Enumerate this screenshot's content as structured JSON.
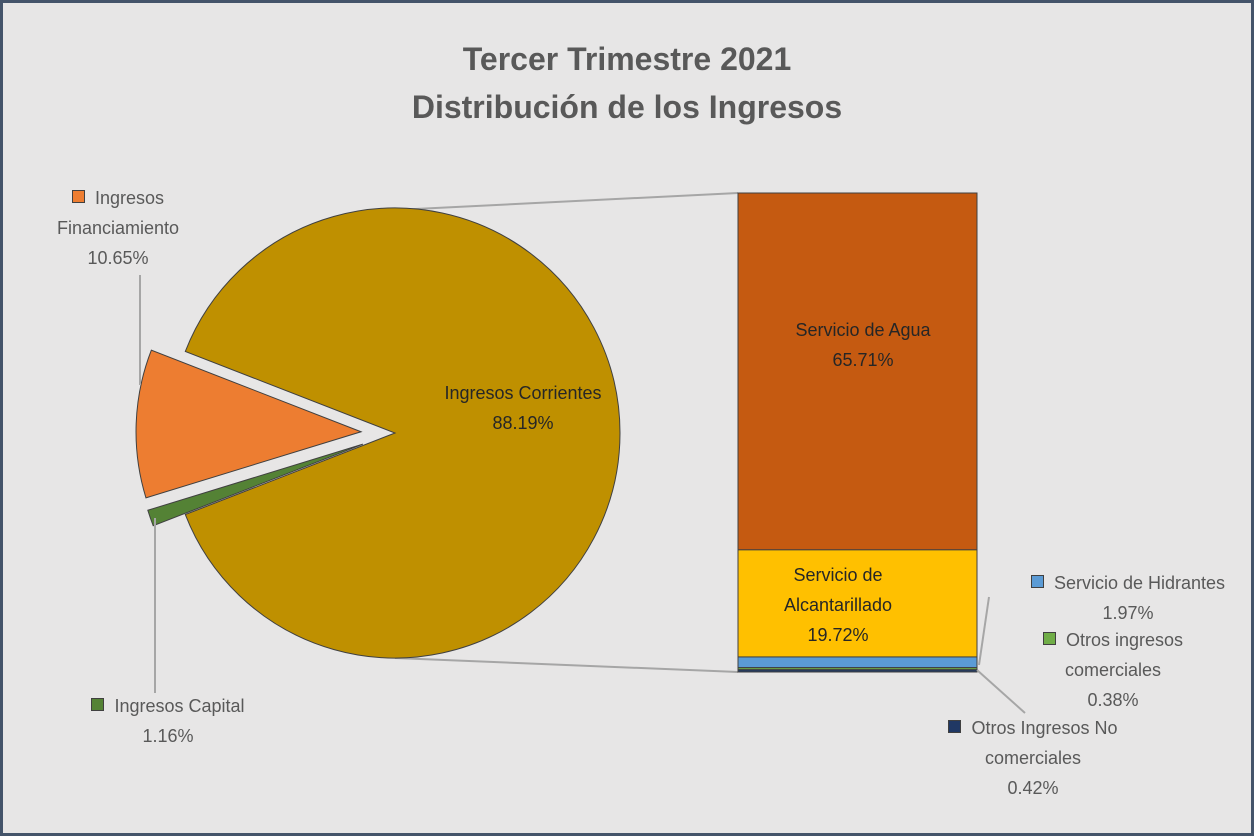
{
  "chart_data": {
    "type": "bar-of-pie",
    "title": "Tercer Trimestre 2021",
    "subtitle": "Distribución de los Ingresos",
    "categories": [
      "Ingresos Corrientes",
      "Ingresos Financiamiento",
      "Ingresos Capital"
    ],
    "values": [
      88.19,
      10.65,
      1.16
    ],
    "value_labels": [
      "88.19%",
      "10.65%",
      "1.16%"
    ],
    "colors": [
      "#bf9000",
      "#ed7d31",
      "#548235"
    ],
    "breakdown": {
      "categories": [
        "Servicio de Agua",
        "Servicio de Alcantarillado",
        "Servicio de Hidrantes",
        "Otros ingresos comerciales",
        "Otros Ingresos No comerciales"
      ],
      "values": [
        65.71,
        19.72,
        1.97,
        0.38,
        0.42
      ],
      "value_labels": [
        "65.71%",
        "19.72%",
        "1.97%",
        "0.38%",
        "0.42%"
      ],
      "colors": [
        "#c55a11",
        "#ffc000",
        "#5b9bd5",
        "#70ad47",
        "#203864"
      ]
    }
  }
}
